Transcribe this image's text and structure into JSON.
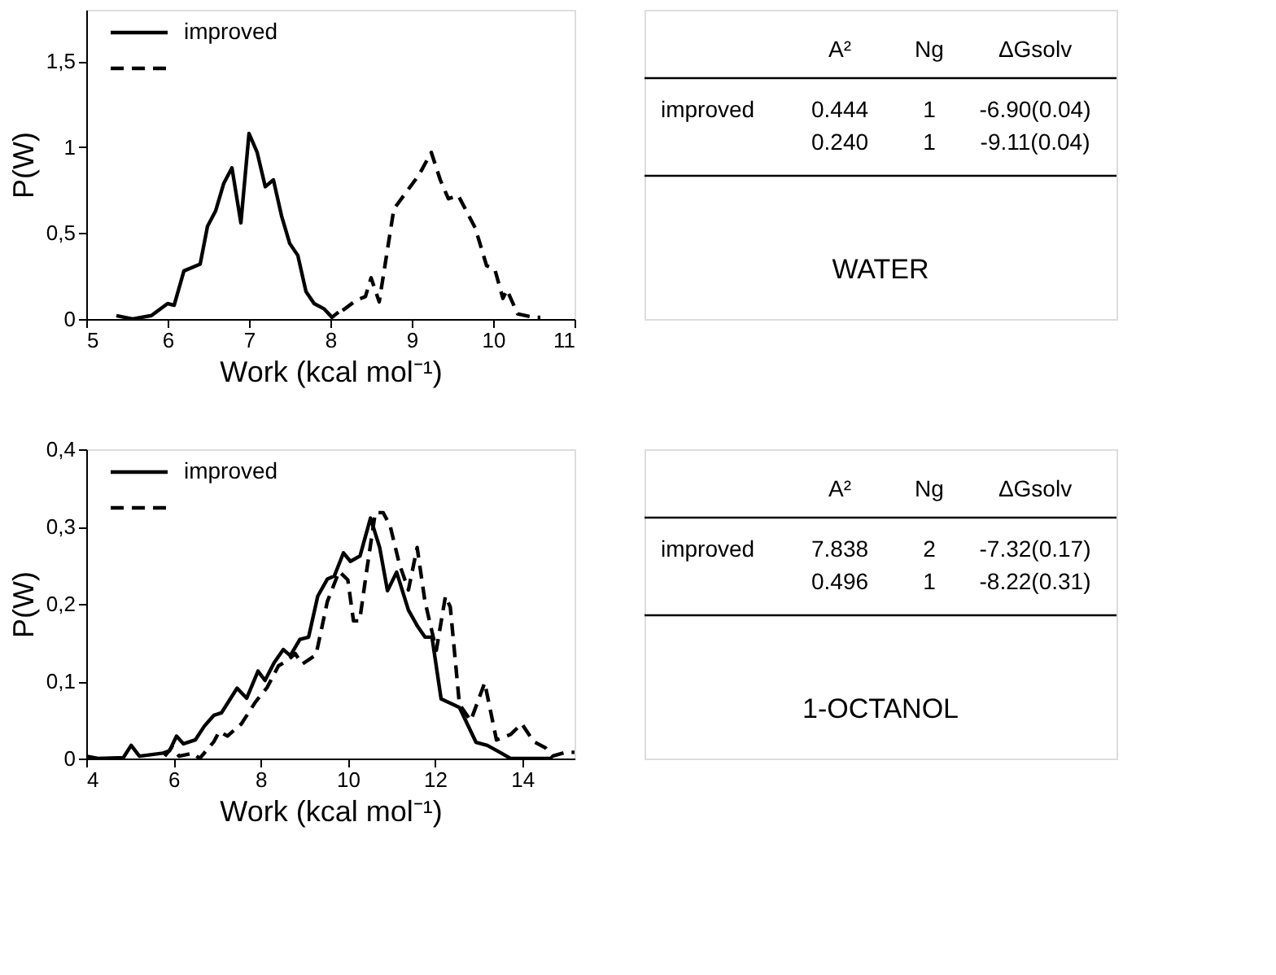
{
  "chart_data": [
    {
      "type": "line",
      "xlabel": "Work (kcal mol⁻¹)",
      "ylabel": "P(W)",
      "xlim": [
        5,
        11
      ],
      "xticks": [
        5,
        6,
        7,
        8,
        9,
        10,
        11
      ],
      "ylim": [
        0,
        1.8
      ],
      "yticks": [
        0,
        {
          "value": 0.5,
          "label": "0,5"
        },
        1,
        {
          "value": 1.5,
          "label": "1,5"
        }
      ],
      "legend": "top left",
      "grid": false,
      "series": [
        {
          "name": "improved",
          "color": "#000000",
          "line_style": "solid",
          "x": [
            5.37,
            5.57,
            5.8,
            6.0,
            6.08,
            6.2,
            6.4,
            6.49,
            6.59,
            6.69,
            6.79,
            6.9,
            7.0,
            7.1,
            7.2,
            7.3,
            7.4,
            7.5,
            7.6,
            7.7,
            7.8,
            7.92,
            8.02,
            8.1
          ],
          "values": [
            0.02,
            0,
            0.02,
            0.09,
            0.08,
            0.28,
            0.32,
            0.54,
            0.63,
            0.79,
            0.88,
            0.56,
            1.08,
            0.97,
            0.77,
            0.81,
            0.6,
            0.44,
            0.37,
            0.16,
            0.09,
            0.06,
            0.01,
            0.04
          ]
        },
        {
          "color": "#000000",
          "line_style": "dashed",
          "x": [
            8.15,
            8.32,
            8.43,
            8.5,
            8.6,
            8.78,
            8.95,
            9.09,
            9.24,
            9.35,
            9.45,
            9.57,
            9.78,
            9.92,
            10.02,
            10.12,
            10.17,
            10.3,
            10.5,
            10.58
          ],
          "values": [
            0.05,
            0.11,
            0.13,
            0.24,
            0.1,
            0.64,
            0.75,
            0.84,
            0.97,
            0.81,
            0.7,
            0.72,
            0.53,
            0.31,
            0.29,
            0.12,
            0.17,
            0.03,
            0.01,
            0.01
          ]
        }
      ]
    },
    {
      "type": "other",
      "title": "WATER",
      "categories": [
        null,
        "A²",
        "Ng",
        "ΔGsolv"
      ],
      "cell_labels": [
        [
          "improved",
          "0.444",
          "1",
          "-6.90(0.04)"
        ],
        [
          null,
          "0.240",
          "1",
          "-9.11(0.04)"
        ]
      ]
    },
    {
      "type": "line",
      "xlabel": "Work (kcal mol⁻¹)",
      "ylabel": "P(W)",
      "xlim": [
        4,
        15.2
      ],
      "xticks": [
        4,
        6,
        8,
        10,
        12,
        14
      ],
      "ylim": [
        0,
        0.4
      ],
      "yticks": [
        0,
        {
          "value": 0.1,
          "label": "0,1"
        },
        {
          "value": 0.2,
          "label": "0,2"
        },
        {
          "value": 0.3,
          "label": "0,3"
        },
        {
          "value": 0.4,
          "label": "0,4"
        }
      ],
      "legend": "top left",
      "grid": false,
      "series": [
        {
          "name": "improved",
          "color": "#000000",
          "line_style": "solid",
          "x": [
            4.0,
            4.27,
            4.85,
            5.03,
            5.22,
            5.76,
            5.91,
            6.07,
            6.23,
            6.5,
            6.71,
            6.93,
            7.1,
            7.46,
            7.68,
            7.94,
            8.1,
            8.31,
            8.52,
            8.68,
            8.9,
            9.1,
            9.31,
            9.53,
            9.69,
            9.9,
            10.06,
            10.28,
            10.52,
            10.73,
            10.91,
            11.12,
            11.39,
            11.6,
            11.77,
            11.93,
            12.14,
            12.56,
            12.94,
            13.2,
            13.52,
            13.73,
            14.16,
            14.7
          ],
          "values": [
            0.003,
            0,
            0.001,
            0.017,
            0.003,
            0.007,
            0.01,
            0.029,
            0.019,
            0.024,
            0.042,
            0.056,
            0.059,
            0.091,
            0.078,
            0.113,
            0.101,
            0.124,
            0.141,
            0.133,
            0.154,
            0.157,
            0.21,
            0.232,
            0.236,
            0.266,
            0.255,
            0.262,
            0.311,
            0.273,
            0.217,
            0.241,
            0.192,
            0.171,
            0.157,
            0.157,
            0.077,
            0.066,
            0.021,
            0.017,
            0.007,
            0,
            0,
            0
          ]
        },
        {
          "color": "#000000",
          "line_style": "dashed",
          "x": [
            5.8,
            5.97,
            6.13,
            6.45,
            6.6,
            6.93,
            7.05,
            7.24,
            7.56,
            7.88,
            8.15,
            8.41,
            8.63,
            8.79,
            8.95,
            9.27,
            9.53,
            9.8,
            10.0,
            10.13,
            10.27,
            10.43,
            10.63,
            10.81,
            10.97,
            11.18,
            11.39,
            11.59,
            11.77,
            12.03,
            12.24,
            12.35,
            12.56,
            12.82,
            13.14,
            13.41,
            13.73,
            13.99,
            14.26,
            14.53,
            14.69,
            15.0,
            15.2
          ],
          "values": [
            0.003,
            0.015,
            0.003,
            0.007,
            0,
            0.022,
            0.035,
            0.029,
            0.045,
            0.073,
            0.092,
            0.12,
            0.127,
            0.136,
            0.122,
            0.134,
            0.203,
            0.242,
            0.231,
            0.178,
            0.178,
            0.242,
            0.318,
            0.318,
            0.301,
            0.252,
            0.218,
            0.273,
            0.203,
            0.14,
            0.21,
            0.196,
            0.07,
            0.049,
            0.098,
            0.024,
            0.031,
            0.045,
            0.022,
            0.014,
            0.003,
            0.008,
            0.008
          ]
        }
      ]
    },
    {
      "type": "other",
      "title": "1-OCTANOL",
      "categories": [
        null,
        "A²",
        "Ng",
        "ΔGsolv"
      ],
      "cell_labels": [
        [
          "improved",
          "7.838",
          "2",
          "-7.32(0.17)"
        ],
        [
          null,
          "0.496",
          "1",
          "-8.22(0.31)"
        ]
      ]
    }
  ]
}
